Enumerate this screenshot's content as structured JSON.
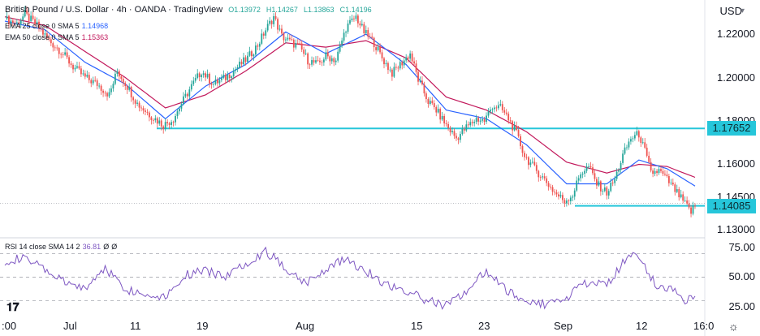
{
  "header": {
    "symbol": "British Pound / U.S. Dollar",
    "timeframe": "4h",
    "exchange": "OANDA",
    "platform": "TradingView",
    "open": "O1.13972",
    "high": "H1.14267",
    "low": "L1.13863",
    "close": "C1.14196",
    "currency": "USD",
    "ema25_label": "EMA 25 close 0 SMA 5",
    "ema25_value": "1.14968",
    "ema50_label": "EMA 50 close 0 SMA 5",
    "ema50_value": "1.15363",
    "rsi_label": "RSI 14 close SMA 14 2",
    "rsi_value": "36.81",
    "rsi_extra1": "Ø",
    "rsi_extra2": "Ø"
  },
  "colors": {
    "up": "#26a69a",
    "down": "#ef5350",
    "ema25": "#2962ff",
    "ema50": "#c2185b",
    "level": "#26c6da",
    "rsi": "#7e57c2"
  },
  "price_axis": {
    "ticks": [
      "1.22000",
      "1.20000",
      "1.18000",
      "1.16000",
      "1.14500",
      "1.13000"
    ]
  },
  "time_axis": {
    "ticks": [
      ":00",
      "Jul",
      "11",
      "19",
      "Aug",
      "15",
      "23",
      "Sep",
      "12",
      "16:0"
    ]
  },
  "rsi_axis": {
    "ticks": [
      "75.00",
      "50.00",
      "25.00"
    ]
  },
  "chart_data": [
    {
      "type": "candlestick",
      "title": "British Pound / U.S. Dollar 4h OANDA",
      "ylim": [
        1.128,
        1.232
      ],
      "key_levels": [
        {
          "label": "1.17652",
          "value": 1.17652
        },
        {
          "label": "1.14085",
          "value": 1.14085
        }
      ],
      "close_path": [
        [
          0,
          1.227
        ],
        [
          6,
          1.225
        ],
        [
          10,
          1.229
        ],
        [
          16,
          1.224
        ],
        [
          22,
          1.217
        ],
        [
          28,
          1.212
        ],
        [
          34,
          1.205
        ],
        [
          40,
          1.2
        ],
        [
          46,
          1.197
        ],
        [
          52,
          1.192
        ],
        [
          56,
          1.203
        ],
        [
          61,
          1.196
        ],
        [
          66,
          1.188
        ],
        [
          72,
          1.183
        ],
        [
          79,
          1.178
        ],
        [
          84,
          1.181
        ],
        [
          88,
          1.188
        ],
        [
          93,
          1.196
        ],
        [
          98,
          1.203
        ],
        [
          104,
          1.197
        ],
        [
          110,
          1.2
        ],
        [
          115,
          1.204
        ],
        [
          121,
          1.209
        ],
        [
          126,
          1.215
        ],
        [
          130,
          1.222
        ],
        [
          134,
          1.228
        ],
        [
          138,
          1.219
        ],
        [
          143,
          1.216
        ],
        [
          147,
          1.214
        ],
        [
          151,
          1.208
        ],
        [
          156,
          1.206
        ],
        [
          160,
          1.21
        ],
        [
          165,
          1.208
        ],
        [
          170,
          1.223
        ],
        [
          175,
          1.228
        ],
        [
          179,
          1.221
        ],
        [
          184,
          1.216
        ],
        [
          188,
          1.209
        ],
        [
          193,
          1.202
        ],
        [
          197,
          1.206
        ],
        [
          202,
          1.211
        ],
        [
          206,
          1.199
        ],
        [
          211,
          1.189
        ],
        [
          215,
          1.185
        ],
        [
          220,
          1.178
        ],
        [
          225,
          1.172
        ],
        [
          230,
          1.177
        ],
        [
          235,
          1.181
        ],
        [
          239,
          1.18
        ],
        [
          243,
          1.187
        ],
        [
          247,
          1.186
        ],
        [
          251,
          1.181
        ],
        [
          255,
          1.174
        ],
        [
          259,
          1.164
        ],
        [
          264,
          1.158
        ],
        [
          269,
          1.153
        ],
        [
          274,
          1.147
        ],
        [
          279,
          1.143
        ],
        [
          283,
          1.146
        ],
        [
          287,
          1.156
        ],
        [
          291,
          1.159
        ],
        [
          295,
          1.151
        ],
        [
          300,
          1.147
        ],
        [
          304,
          1.153
        ],
        [
          308,
          1.164
        ],
        [
          312,
          1.172
        ],
        [
          316,
          1.174
        ],
        [
          319,
          1.166
        ],
        [
          322,
          1.156
        ],
        [
          326,
          1.157
        ],
        [
          330,
          1.153
        ],
        [
          334,
          1.148
        ],
        [
          338,
          1.143
        ],
        [
          342,
          1.138
        ],
        [
          344,
          1.141
        ]
      ],
      "ema25_path": [
        [
          0,
          1.226
        ],
        [
          20,
          1.222
        ],
        [
          40,
          1.207
        ],
        [
          60,
          1.197
        ],
        [
          80,
          1.181
        ],
        [
          100,
          1.196
        ],
        [
          120,
          1.206
        ],
        [
          140,
          1.221
        ],
        [
          160,
          1.211
        ],
        [
          180,
          1.22
        ],
        [
          200,
          1.206
        ],
        [
          220,
          1.185
        ],
        [
          240,
          1.181
        ],
        [
          260,
          1.169
        ],
        [
          280,
          1.151
        ],
        [
          300,
          1.151
        ],
        [
          316,
          1.162
        ],
        [
          330,
          1.158
        ],
        [
          344,
          1.15
        ]
      ],
      "ema50_path": [
        [
          0,
          1.228
        ],
        [
          20,
          1.224
        ],
        [
          40,
          1.212
        ],
        [
          60,
          1.2
        ],
        [
          80,
          1.186
        ],
        [
          100,
          1.192
        ],
        [
          120,
          1.203
        ],
        [
          140,
          1.216
        ],
        [
          160,
          1.214
        ],
        [
          180,
          1.217
        ],
        [
          200,
          1.209
        ],
        [
          220,
          1.191
        ],
        [
          240,
          1.185
        ],
        [
          260,
          1.175
        ],
        [
          280,
          1.161
        ],
        [
          300,
          1.156
        ],
        [
          316,
          1.16
        ],
        [
          330,
          1.159
        ],
        [
          344,
          1.154
        ]
      ]
    },
    {
      "type": "line",
      "title": "RSI 14 close SMA 14 2",
      "ylim": [
        15,
        80
      ],
      "bands": [
        70,
        50,
        30
      ],
      "path": [
        [
          0,
          64
        ],
        [
          10,
          66
        ],
        [
          20,
          56
        ],
        [
          30,
          45
        ],
        [
          40,
          40
        ],
        [
          50,
          58
        ],
        [
          60,
          40
        ],
        [
          70,
          35
        ],
        [
          80,
          34
        ],
        [
          90,
          52
        ],
        [
          100,
          55
        ],
        [
          110,
          51
        ],
        [
          120,
          62
        ],
        [
          130,
          72
        ],
        [
          140,
          58
        ],
        [
          150,
          45
        ],
        [
          160,
          57
        ],
        [
          170,
          66
        ],
        [
          180,
          55
        ],
        [
          190,
          44
        ],
        [
          200,
          38
        ],
        [
          210,
          30
        ],
        [
          220,
          26
        ],
        [
          230,
          38
        ],
        [
          240,
          56
        ],
        [
          250,
          38
        ],
        [
          260,
          30
        ],
        [
          270,
          27
        ],
        [
          280,
          33
        ],
        [
          290,
          45
        ],
        [
          300,
          43
        ],
        [
          308,
          62
        ],
        [
          312,
          71
        ],
        [
          316,
          66
        ],
        [
          320,
          56
        ],
        [
          326,
          40
        ],
        [
          332,
          42
        ],
        [
          336,
          36
        ],
        [
          340,
          28
        ],
        [
          344,
          36.81
        ]
      ]
    }
  ]
}
